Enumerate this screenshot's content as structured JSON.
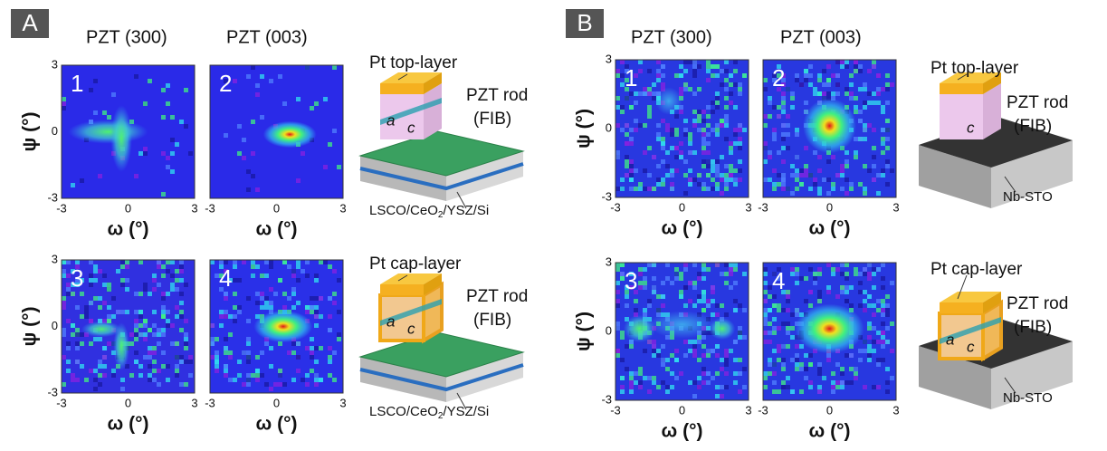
{
  "panels": [
    {
      "label": "A",
      "headers": [
        "PZT (300)",
        "PZT (003)"
      ],
      "plots": [
        {
          "number": "1",
          "x_ticks": [
            -3,
            0,
            3
          ],
          "x_label": "ω (°)",
          "y_ticks": [
            3,
            0,
            -3
          ],
          "y_label": "ψ (°)"
        },
        {
          "number": "2",
          "x_ticks": [
            -3,
            0,
            3
          ],
          "x_label": "ω (°)"
        },
        {
          "number": "3",
          "x_ticks": [
            -3,
            0,
            3
          ],
          "x_label": "ω (°)",
          "y_ticks": [
            3,
            0,
            -3
          ],
          "y_label": "ψ (°)"
        },
        {
          "number": "4",
          "x_ticks": [
            -3,
            0,
            3
          ],
          "x_label": "ω (°)"
        }
      ],
      "schematics": [
        {
          "top": "Pt top-layer",
          "rod": "PZT rod",
          "fib": "(FIB)",
          "a": "a",
          "c": "c",
          "substrate": [
            "LSCO/CeO",
            "2",
            "/YSZ/Si"
          ]
        },
        {
          "top": "Pt cap-layer",
          "rod": "PZT rod",
          "fib": "(FIB)",
          "a": "a",
          "c": "c",
          "substrate": [
            "LSCO/CeO",
            "2",
            "/YSZ/Si"
          ]
        }
      ]
    },
    {
      "label": "B",
      "headers": [
        "PZT (300)",
        "PZT (003)"
      ],
      "plots": [
        {
          "number": "1",
          "x_ticks": [
            -3,
            0,
            3
          ],
          "x_label": "ω (°)",
          "y_ticks": [
            3,
            0,
            -3
          ],
          "y_label": "ψ (°)"
        },
        {
          "number": "2",
          "x_ticks": [
            -3,
            0,
            3
          ],
          "x_label": "ω (°)"
        },
        {
          "number": "3",
          "x_ticks": [
            -3,
            0,
            3
          ],
          "x_label": "ω (°)",
          "y_ticks": [
            3,
            0,
            -3
          ],
          "y_label": "ψ (°)"
        },
        {
          "number": "4",
          "x_ticks": [
            -3,
            0,
            3
          ],
          "x_label": "ω (°)"
        }
      ],
      "schematics": [
        {
          "top": "Pt top-layer",
          "rod": "PZT rod",
          "fib": "(FIB)",
          "c": "c",
          "substrate": [
            "Nb-STO"
          ]
        },
        {
          "top": "Pt cap-layer",
          "rod": "PZT rod",
          "fib": "(FIB)",
          "a": "a",
          "c": "c",
          "substrate": [
            "Nb-STO"
          ]
        }
      ]
    }
  ]
}
